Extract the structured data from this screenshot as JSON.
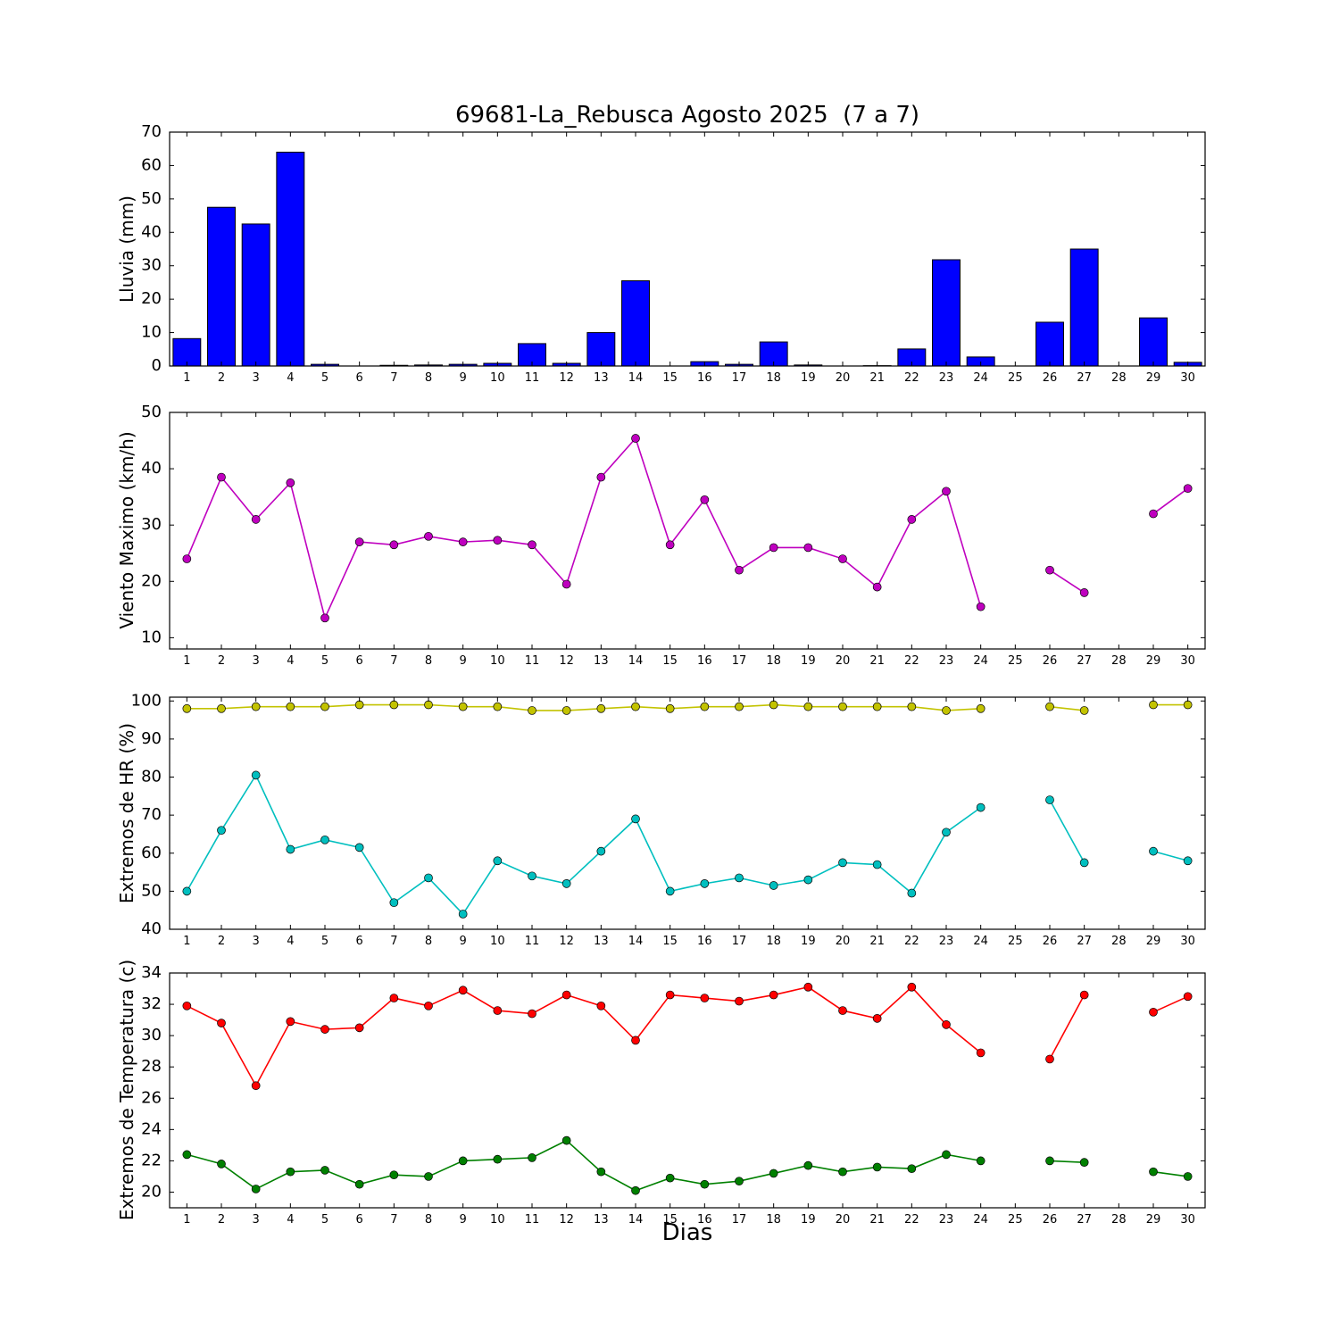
{
  "figure": {
    "background": "#ffffff"
  },
  "chart_data": [
    {
      "name": "lluvia",
      "type": "bar",
      "title": "69681-La_Rebusca Agosto 2025  (7 a 7)",
      "ylabel": "Lluvia (mm)",
      "x": [
        1,
        2,
        3,
        4,
        5,
        6,
        7,
        8,
        9,
        10,
        11,
        12,
        13,
        14,
        15,
        16,
        17,
        18,
        19,
        20,
        21,
        22,
        23,
        24,
        25,
        26,
        27,
        28,
        29,
        30
      ],
      "values": [
        8.2,
        47.5,
        42.5,
        64,
        0.5,
        0,
        0.2,
        0.3,
        0.5,
        0.8,
        6.7,
        0.8,
        10,
        25.5,
        0,
        1.3,
        0.5,
        7.2,
        0.3,
        0,
        0.1,
        5.1,
        31.8,
        2.7,
        0,
        13.1,
        35,
        0,
        14.4,
        1.1
      ],
      "xlim": [
        0.5,
        30.5
      ],
      "ylim": [
        0,
        70
      ],
      "yticks": [
        0,
        10,
        20,
        30,
        40,
        50,
        60,
        70
      ],
      "bar_color": "#0000ff",
      "bar_edge": "#000000",
      "bar_width": 0.8
    },
    {
      "name": "viento",
      "type": "line",
      "ylabel": "Viento Maximo (km/h)",
      "x": [
        1,
        2,
        3,
        4,
        5,
        6,
        7,
        8,
        9,
        10,
        11,
        12,
        13,
        14,
        15,
        16,
        17,
        18,
        19,
        20,
        21,
        22,
        23,
        24,
        25,
        26,
        27,
        28,
        29,
        30
      ],
      "series": [
        {
          "name": "viento-maximo",
          "color": "#bf00bf",
          "values": [
            24,
            38.5,
            31,
            37.5,
            13.5,
            27,
            26.5,
            28,
            27,
            27.3,
            26.5,
            19.5,
            38.5,
            45.4,
            26.5,
            34.5,
            22,
            26,
            26,
            24,
            19,
            31,
            36,
            15.5,
            null,
            22,
            18,
            null,
            32,
            36.5
          ]
        }
      ],
      "xlim": [
        0.5,
        30.5
      ],
      "ylim": [
        8,
        50
      ],
      "yticks": [
        10,
        20,
        30,
        40,
        50
      ]
    },
    {
      "name": "hr",
      "type": "line",
      "ylabel": "Extremos de HR (%)",
      "x": [
        1,
        2,
        3,
        4,
        5,
        6,
        7,
        8,
        9,
        10,
        11,
        12,
        13,
        14,
        15,
        16,
        17,
        18,
        19,
        20,
        21,
        22,
        23,
        24,
        25,
        26,
        27,
        28,
        29,
        30
      ],
      "series": [
        {
          "name": "hr-maxima",
          "color": "#c3c300",
          "values": [
            98,
            98,
            98.5,
            98.5,
            98.5,
            99,
            99,
            99,
            98.5,
            98.5,
            97.5,
            97.5,
            98,
            98.5,
            98,
            98.5,
            98.5,
            99,
            98.5,
            98.5,
            98.5,
            98.5,
            97.5,
            98,
            null,
            98.5,
            97.5,
            null,
            99,
            99
          ]
        },
        {
          "name": "hr-minima",
          "color": "#00bfbf",
          "values": [
            50,
            66,
            80.5,
            61,
            63.5,
            61.5,
            47,
            53.5,
            44,
            58,
            54,
            52,
            60.5,
            69,
            50,
            52,
            53.5,
            51.5,
            53,
            57.5,
            57,
            49.5,
            65.5,
            72,
            null,
            74,
            57.5,
            null,
            60.5,
            58
          ]
        }
      ],
      "xlim": [
        0.5,
        30.5
      ],
      "ylim": [
        40,
        101
      ],
      "yticks": [
        40,
        50,
        60,
        70,
        80,
        90,
        100
      ]
    },
    {
      "name": "temperatura",
      "type": "line",
      "ylabel": "Extremos de Temperatura (c)",
      "xlabel": "Dias",
      "x": [
        1,
        2,
        3,
        4,
        5,
        6,
        7,
        8,
        9,
        10,
        11,
        12,
        13,
        14,
        15,
        16,
        17,
        18,
        19,
        20,
        21,
        22,
        23,
        24,
        25,
        26,
        27,
        28,
        29,
        30
      ],
      "series": [
        {
          "name": "temperatura-maxima",
          "color": "#ff0000",
          "values": [
            31.9,
            30.8,
            26.8,
            30.9,
            30.4,
            30.5,
            32.4,
            31.9,
            32.9,
            31.6,
            31.4,
            32.6,
            31.9,
            29.7,
            32.6,
            32.4,
            32.2,
            32.6,
            33.1,
            31.6,
            31.1,
            33.1,
            30.7,
            28.9,
            null,
            28.5,
            32.6,
            null,
            31.5,
            32.5
          ]
        },
        {
          "name": "temperatura-minima",
          "color": "#008000",
          "values": [
            22.4,
            21.8,
            20.2,
            21.3,
            21.4,
            20.5,
            21.1,
            21.0,
            22.0,
            22.1,
            22.2,
            23.3,
            21.3,
            20.1,
            20.9,
            20.5,
            20.7,
            21.2,
            21.7,
            21.3,
            21.6,
            21.5,
            22.4,
            22.0,
            null,
            22.0,
            21.9,
            null,
            21.3,
            21.0
          ]
        }
      ],
      "xlim": [
        0.5,
        30.5
      ],
      "ylim": [
        19,
        34
      ],
      "yticks": [
        20,
        22,
        24,
        26,
        28,
        30,
        32,
        34
      ]
    }
  ]
}
